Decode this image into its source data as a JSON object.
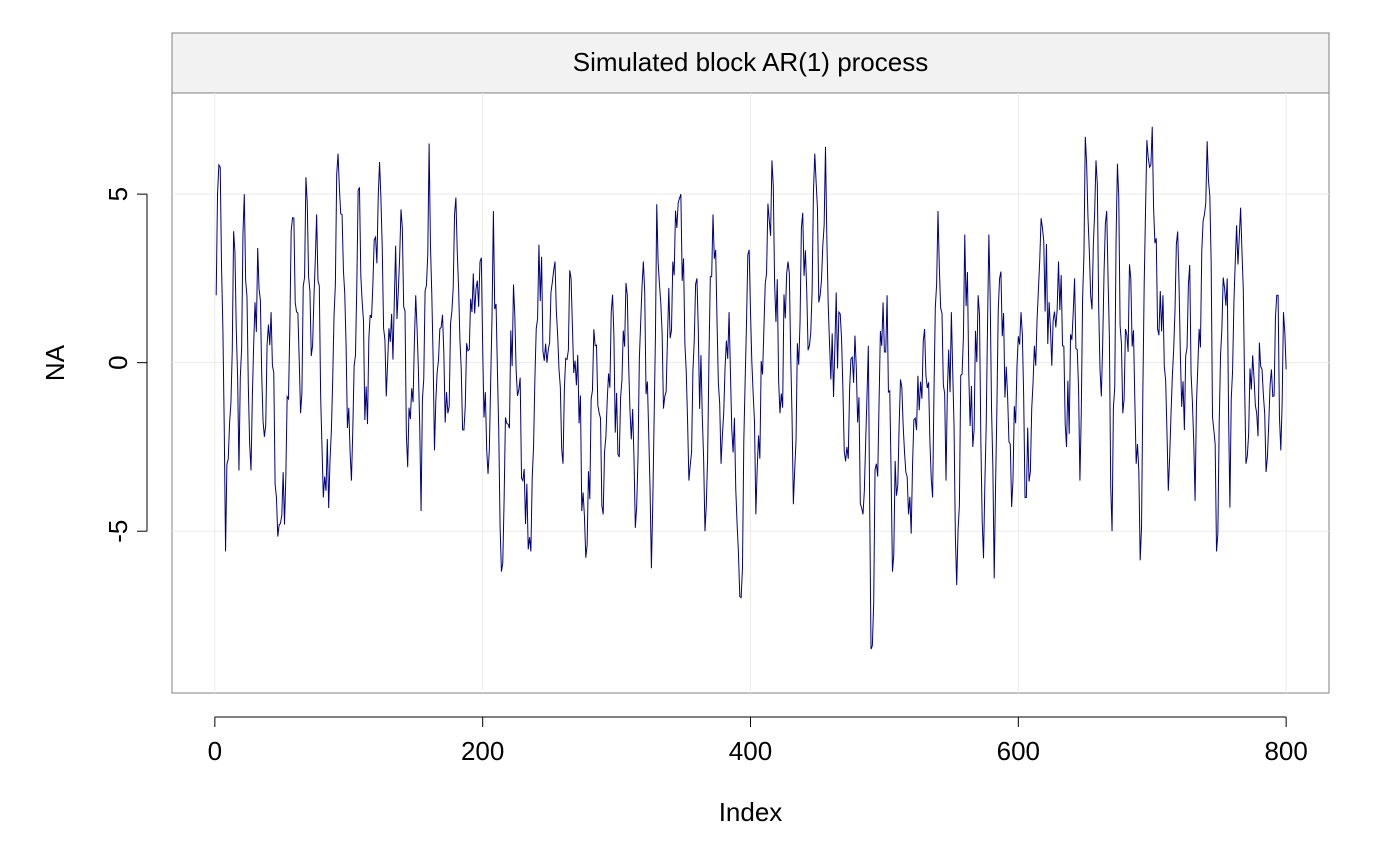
{
  "chart_data": {
    "type": "line",
    "title": "Simulated block AR(1) process",
    "xlabel": "Index",
    "ylabel": "NA",
    "xlim": [
      -32,
      832
    ],
    "ylim": [
      -9.8,
      8.0
    ],
    "x_ticks": [
      0,
      200,
      400,
      600,
      800
    ],
    "y_ticks": [
      -5,
      0,
      5
    ],
    "grid": true,
    "legend": "none",
    "series": [
      {
        "color": "#000080",
        "x_start": 1,
        "x_step": 1,
        "anchors": [
          {
            "x": 1,
            "y": 2.0
          },
          {
            "x": 2,
            "y": 5.0
          },
          {
            "x": 4,
            "y": 5.8
          },
          {
            "x": 6,
            "y": 1.0
          },
          {
            "x": 8,
            "y": -5.6
          },
          {
            "x": 12,
            "y": -1.2
          },
          {
            "x": 14,
            "y": 3.9
          },
          {
            "x": 18,
            "y": -3.2
          },
          {
            "x": 22,
            "y": 5.0
          },
          {
            "x": 27,
            "y": -3.2
          },
          {
            "x": 32,
            "y": 3.4
          },
          {
            "x": 37,
            "y": -2.2
          },
          {
            "x": 42,
            "y": 1.5
          },
          {
            "x": 46,
            "y": -4.0
          },
          {
            "x": 52,
            "y": -4.8
          },
          {
            "x": 58,
            "y": 4.3
          },
          {
            "x": 64,
            "y": -1.5
          },
          {
            "x": 68,
            "y": 5.5
          },
          {
            "x": 72,
            "y": 0.2
          },
          {
            "x": 76,
            "y": 4.4
          },
          {
            "x": 80,
            "y": -2.5
          },
          {
            "x": 86,
            "y": -2.9
          },
          {
            "x": 92,
            "y": 6.2
          },
          {
            "x": 98,
            "y": 0.5
          },
          {
            "x": 102,
            "y": -3.5
          },
          {
            "x": 108,
            "y": 5.2
          },
          {
            "x": 112,
            "y": -1.7
          },
          {
            "x": 118,
            "y": 2.3
          },
          {
            "x": 124,
            "y": 4.9
          },
          {
            "x": 128,
            "y": -1.0
          },
          {
            "x": 134,
            "y": 1.8
          },
          {
            "x": 140,
            "y": 4.0
          },
          {
            "x": 144,
            "y": -3.1
          },
          {
            "x": 150,
            "y": 2.0
          },
          {
            "x": 154,
            "y": -4.4
          },
          {
            "x": 160,
            "y": 6.5
          },
          {
            "x": 164,
            "y": -2.6
          },
          {
            "x": 168,
            "y": 1.0
          },
          {
            "x": 174,
            "y": -1.5
          },
          {
            "x": 180,
            "y": 4.9
          },
          {
            "x": 186,
            "y": -2.0
          },
          {
            "x": 192,
            "y": 1.5
          },
          {
            "x": 198,
            "y": 3.0
          },
          {
            "x": 204,
            "y": -3.3
          },
          {
            "x": 208,
            "y": 4.5
          },
          {
            "x": 214,
            "y": -6.2
          },
          {
            "x": 218,
            "y": -1.8
          },
          {
            "x": 224,
            "y": 1.4
          },
          {
            "x": 230,
            "y": -3.5
          },
          {
            "x": 236,
            "y": -5.6
          },
          {
            "x": 242,
            "y": 3.5
          },
          {
            "x": 248,
            "y": 0.0
          },
          {
            "x": 254,
            "y": 3.0
          },
          {
            "x": 260,
            "y": -3.0
          },
          {
            "x": 266,
            "y": 2.5
          },
          {
            "x": 272,
            "y": -1.8
          },
          {
            "x": 278,
            "y": -5.4
          },
          {
            "x": 284,
            "y": 0.5
          },
          {
            "x": 290,
            "y": -4.5
          },
          {
            "x": 296,
            "y": 1.5
          },
          {
            "x": 302,
            "y": -2.8
          },
          {
            "x": 308,
            "y": 2.0
          },
          {
            "x": 314,
            "y": -4.9
          },
          {
            "x": 320,
            "y": 3.0
          },
          {
            "x": 326,
            "y": -6.1
          },
          {
            "x": 330,
            "y": 4.7
          },
          {
            "x": 336,
            "y": -1.0
          },
          {
            "x": 342,
            "y": 3.0
          },
          {
            "x": 348,
            "y": 5.0
          },
          {
            "x": 354,
            "y": -3.5
          },
          {
            "x": 360,
            "y": 2.5
          },
          {
            "x": 366,
            "y": -5.0
          },
          {
            "x": 372,
            "y": 4.4
          },
          {
            "x": 378,
            "y": -3.0
          },
          {
            "x": 384,
            "y": 1.5
          },
          {
            "x": 390,
            "y": -4.8
          },
          {
            "x": 394,
            "y": -6.1
          },
          {
            "x": 398,
            "y": 3.2
          },
          {
            "x": 404,
            "y": -4.5
          },
          {
            "x": 410,
            "y": 1.0
          },
          {
            "x": 416,
            "y": 6.0
          },
          {
            "x": 422,
            "y": -1.5
          },
          {
            "x": 428,
            "y": 3.0
          },
          {
            "x": 432,
            "y": -4.2
          },
          {
            "x": 438,
            "y": 4.0
          },
          {
            "x": 444,
            "y": 0.5
          },
          {
            "x": 448,
            "y": 6.2
          },
          {
            "x": 452,
            "y": 2.0
          },
          {
            "x": 456,
            "y": 6.4
          },
          {
            "x": 460,
            "y": -0.5
          },
          {
            "x": 466,
            "y": 1.5
          },
          {
            "x": 472,
            "y": -2.5
          },
          {
            "x": 478,
            "y": 0.8
          },
          {
            "x": 484,
            "y": -4.5
          },
          {
            "x": 488,
            "y": 0.5
          },
          {
            "x": 490,
            "y": -8.5
          },
          {
            "x": 494,
            "y": -3.0
          },
          {
            "x": 498,
            "y": 0.5
          },
          {
            "x": 502,
            "y": 2.0
          },
          {
            "x": 506,
            "y": -6.2
          },
          {
            "x": 512,
            "y": -0.5
          },
          {
            "x": 518,
            "y": -4.5
          },
          {
            "x": 524,
            "y": -2.0
          },
          {
            "x": 530,
            "y": 1.0
          },
          {
            "x": 536,
            "y": -4.0
          },
          {
            "x": 540,
            "y": 4.5
          },
          {
            "x": 546,
            "y": -3.5
          },
          {
            "x": 550,
            "y": 1.5
          },
          {
            "x": 554,
            "y": -6.6
          },
          {
            "x": 560,
            "y": 3.8
          },
          {
            "x": 566,
            "y": -2.5
          },
          {
            "x": 570,
            "y": 2.0
          },
          {
            "x": 574,
            "y": -5.8
          },
          {
            "x": 578,
            "y": 3.8
          },
          {
            "x": 582,
            "y": -6.4
          },
          {
            "x": 586,
            "y": 2.5
          },
          {
            "x": 592,
            "y": -1.0
          },
          {
            "x": 596,
            "y": -3.5
          },
          {
            "x": 602,
            "y": 1.5
          },
          {
            "x": 606,
            "y": -4.0
          },
          {
            "x": 612,
            "y": 0.5
          },
          {
            "x": 618,
            "y": 4.0
          },
          {
            "x": 624,
            "y": 1.0
          },
          {
            "x": 630,
            "y": 3.0
          },
          {
            "x": 636,
            "y": -2.5
          },
          {
            "x": 642,
            "y": 2.5
          },
          {
            "x": 646,
            "y": -3.5
          },
          {
            "x": 650,
            "y": 6.7
          },
          {
            "x": 654,
            "y": 2.0
          },
          {
            "x": 658,
            "y": 6.0
          },
          {
            "x": 662,
            "y": -1.0
          },
          {
            "x": 666,
            "y": 4.5
          },
          {
            "x": 670,
            "y": -5.0
          },
          {
            "x": 674,
            "y": 5.9
          },
          {
            "x": 678,
            "y": -1.5
          },
          {
            "x": 684,
            "y": 2.5
          },
          {
            "x": 688,
            "y": -3.0
          },
          {
            "x": 692,
            "y": -4.9
          },
          {
            "x": 696,
            "y": 6.6
          },
          {
            "x": 700,
            "y": 7.0
          },
          {
            "x": 704,
            "y": 1.0
          },
          {
            "x": 708,
            "y": 2.0
          },
          {
            "x": 712,
            "y": -3.8
          },
          {
            "x": 718,
            "y": 3.5
          },
          {
            "x": 724,
            "y": -2.0
          },
          {
            "x": 728,
            "y": 2.9
          },
          {
            "x": 732,
            "y": -4.1
          },
          {
            "x": 738,
            "y": 4.2
          },
          {
            "x": 742,
            "y": 5.4
          },
          {
            "x": 746,
            "y": -2.0
          },
          {
            "x": 748,
            "y": -5.6
          },
          {
            "x": 752,
            "y": 1.0
          },
          {
            "x": 756,
            "y": 2.5
          },
          {
            "x": 758,
            "y": -4.3
          },
          {
            "x": 762,
            "y": 3.0
          },
          {
            "x": 766,
            "y": 4.6
          },
          {
            "x": 770,
            "y": -3.0
          },
          {
            "x": 774,
            "y": -0.8
          },
          {
            "x": 778,
            "y": -1.5
          },
          {
            "x": 782,
            "y": -0.2
          },
          {
            "x": 786,
            "y": -2.8
          },
          {
            "x": 790,
            "y": -1.0
          },
          {
            "x": 794,
            "y": 2.0
          },
          {
            "x": 796,
            "y": -2.6
          },
          {
            "x": 798,
            "y": 1.5
          },
          {
            "x": 800,
            "y": -0.2
          }
        ]
      }
    ]
  }
}
